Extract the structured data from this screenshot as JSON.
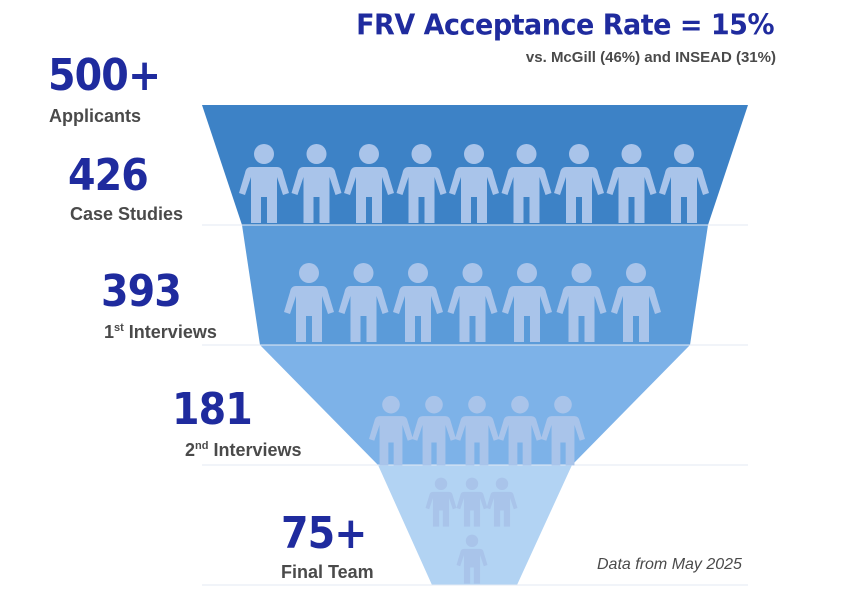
{
  "title": "FRV Acceptance Rate = 15%",
  "subtitle": "vs. McGill (46%) and INSEAD (31%)",
  "note": "Data from May 2025",
  "colors": {
    "accent": "#1f2b9e",
    "label": "#4a4a4a",
    "person": "#a9c4ea",
    "stage_fills": [
      "#3d82c6",
      "#5b9bd9",
      "#7db2e8",
      "#b2d3f3"
    ]
  },
  "chart_data": {
    "type": "funnel",
    "title": "FRV Acceptance Rate = 15%",
    "subtitle": "vs. McGill (46%) and INSEAD (31%)",
    "stages": [
      {
        "value": "500+",
        "label": "Applicants",
        "sup": "",
        "label_rest": ""
      },
      {
        "value": "426",
        "label": "Case Studies",
        "sup": "",
        "label_rest": "",
        "people": 9
      },
      {
        "value": "393",
        "label": "1",
        "sup": "st",
        "label_rest": " Interviews",
        "people": 7
      },
      {
        "value": "181",
        "label": "2",
        "sup": "nd",
        "label_rest": " Interviews",
        "people": 5
      },
      {
        "value": "75+",
        "label": "Final Team",
        "sup": "",
        "label_rest": "",
        "people": 4
      }
    ]
  }
}
